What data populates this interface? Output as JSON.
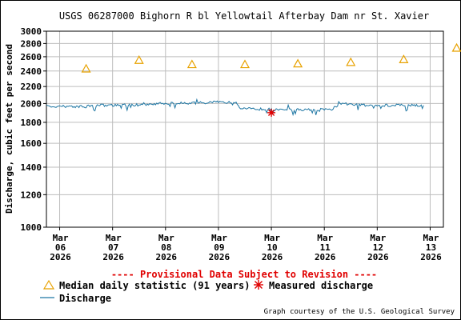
{
  "chart_data": {
    "type": "line",
    "title": "USGS 06287000 Bighorn R bl Yellowtail Afterbay Dam nr St. Xavier",
    "ylabel": "Discharge, cubic feet per second",
    "xlabel": "",
    "yscale": "log",
    "ylim": [
      1000,
      3000
    ],
    "yticks": [
      1000,
      1200,
      1400,
      1600,
      1800,
      2000,
      2200,
      2400,
      2600,
      2800,
      3000
    ],
    "ytick_labels": [
      "1000",
      "1200",
      "1400",
      "1600",
      "1800",
      "2000",
      "2200",
      "2400",
      "2600",
      "2800",
      "3000"
    ],
    "xlim": [
      "2026-03-05T18:00",
      "2026-03-13T06:00"
    ],
    "xticks": [
      {
        "date": "2026-03-06",
        "label": [
          "Mar",
          "06",
          "2026"
        ]
      },
      {
        "date": "2026-03-07",
        "label": [
          "Mar",
          "07",
          "2026"
        ]
      },
      {
        "date": "2026-03-08",
        "label": [
          "Mar",
          "08",
          "2026"
        ]
      },
      {
        "date": "2026-03-09",
        "label": [
          "Mar",
          "09",
          "2026"
        ]
      },
      {
        "date": "2026-03-10",
        "label": [
          "Mar",
          "10",
          "2026"
        ]
      },
      {
        "date": "2026-03-11",
        "label": [
          "Mar",
          "11",
          "2026"
        ]
      },
      {
        "date": "2026-03-12",
        "label": [
          "Mar",
          "12",
          "2026"
        ]
      },
      {
        "date": "2026-03-13",
        "label": [
          "Mar",
          "13",
          "2026"
        ]
      }
    ],
    "grid": true,
    "series": [
      {
        "name": "Discharge",
        "kind": "line",
        "color": "#1f77a4",
        "points": [
          {
            "x": "2026-03-05T18:00",
            "y": 1970
          },
          {
            "x": "2026-03-06T12:00",
            "y": 1965
          },
          {
            "x": "2026-03-06T16:00",
            "y": 1980
          },
          {
            "x": "2026-03-07T12:00",
            "y": 1985
          },
          {
            "x": "2026-03-07T20:00",
            "y": 2000
          },
          {
            "x": "2026-03-08T12:00",
            "y": 2005
          },
          {
            "x": "2026-03-09T00:00",
            "y": 2015
          },
          {
            "x": "2026-03-09T08:00",
            "y": 2015
          },
          {
            "x": "2026-03-09T10:00",
            "y": 1945
          },
          {
            "x": "2026-03-10T00:00",
            "y": 1935
          },
          {
            "x": "2026-03-10T12:00",
            "y": 1930
          },
          {
            "x": "2026-03-11T00:00",
            "y": 1935
          },
          {
            "x": "2026-03-11T04:00",
            "y": 1940
          },
          {
            "x": "2026-03-11T06:00",
            "y": 2010
          },
          {
            "x": "2026-03-11T12:00",
            "y": 1985
          },
          {
            "x": "2026-03-12T00:00",
            "y": 1980
          },
          {
            "x": "2026-03-12T12:00",
            "y": 1980
          },
          {
            "x": "2026-03-12T21:00",
            "y": 1980
          }
        ]
      },
      {
        "name": "Median daily statistic (91 years)",
        "kind": "marker",
        "marker": "triangle",
        "color": "#e8a200",
        "points": [
          {
            "x": "2026-03-06T12:00",
            "y": 2430
          },
          {
            "x": "2026-03-07T12:00",
            "y": 2550
          },
          {
            "x": "2026-03-08T12:00",
            "y": 2490
          },
          {
            "x": "2026-03-09T12:00",
            "y": 2490
          },
          {
            "x": "2026-03-10T12:00",
            "y": 2500
          },
          {
            "x": "2026-03-11T12:00",
            "y": 2520
          },
          {
            "x": "2026-03-12T12:00",
            "y": 2560
          },
          {
            "x": "2026-03-13T12:00",
            "y": 2730
          }
        ]
      },
      {
        "name": "Measured discharge",
        "kind": "marker",
        "marker": "asterisk",
        "color": "#e00000",
        "points": [
          {
            "x": "2026-03-10T00:00",
            "y": 1900
          }
        ]
      }
    ],
    "annotations": [
      "---- Provisional Data Subject to Revision ----"
    ],
    "footer": "Graph courtesy of the U.S. Geological Survey",
    "legend_placement": "bottom"
  }
}
